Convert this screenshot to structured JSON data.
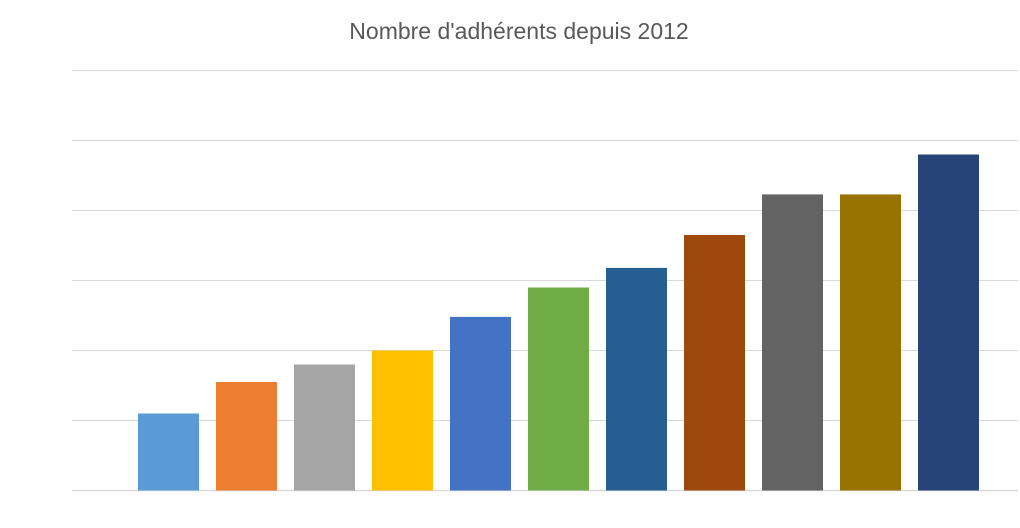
{
  "chart_data": {
    "type": "bar",
    "title": "Nombre d'adhérents depuis 2012",
    "xlabel": "",
    "ylabel": "",
    "categories": [
      "",
      "",
      "",
      "",
      "",
      "",
      "",
      "",
      "",
      "",
      ""
    ],
    "values": [
      1.1,
      1.55,
      1.8,
      2.0,
      2.48,
      2.9,
      3.18,
      3.65,
      4.23,
      4.23,
      4.8
    ],
    "ylim": [
      0,
      6
    ],
    "gridlines": true,
    "legend": "none",
    "bar_colors": [
      "#5b9bd5",
      "#ed7d31",
      "#a5a5a5",
      "#ffc000",
      "#4472c4",
      "#70ad47",
      "#255e91",
      "#9e480e",
      "#636363",
      "#997300",
      "#264478"
    ],
    "grid_color": "#d9d9d9",
    "title_color": "#595959"
  }
}
